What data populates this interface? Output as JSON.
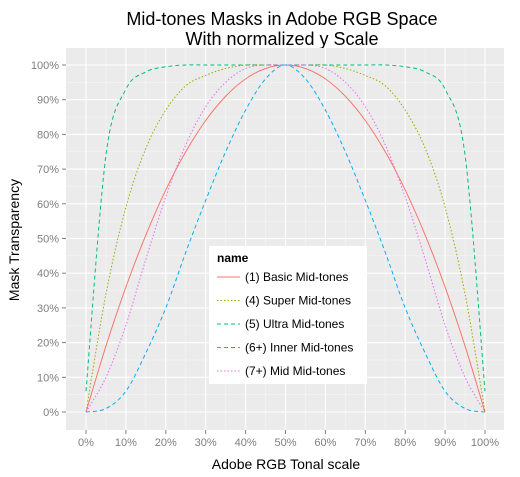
{
  "chart_data": {
    "type": "line",
    "title_line1": "Mid-tones Masks in Adobe RGB Space",
    "title_line2": "With normalized y Scale",
    "xlabel": "Adobe RGB Tonal scale",
    "ylabel": "Mask Transparency",
    "xlim": [
      0,
      1
    ],
    "ylim": [
      0,
      1
    ],
    "x_ticks": [
      "0%",
      "10%",
      "20%",
      "30%",
      "40%",
      "50%",
      "60%",
      "70%",
      "80%",
      "90%",
      "100%"
    ],
    "y_ticks": [
      "0%",
      "10%",
      "20%",
      "30%",
      "40%",
      "50%",
      "60%",
      "70%",
      "80%",
      "90%",
      "100%"
    ],
    "grid": true,
    "legend": {
      "title": "name",
      "placement": "inside-bottom-center"
    },
    "x": [
      0,
      0.05,
      0.1,
      0.15,
      0.2,
      0.25,
      0.3,
      0.35,
      0.4,
      0.45,
      0.5,
      0.55,
      0.6,
      0.65,
      0.7,
      0.75,
      0.8,
      0.85,
      0.9,
      0.95,
      1
    ],
    "series": [
      {
        "name": "(1) Basic Mid-tones",
        "color": "#F8766D",
        "dash": "solid",
        "values": [
          0.0,
          0.19,
          0.36,
          0.51,
          0.64,
          0.75,
          0.84,
          0.91,
          0.96,
          0.99,
          1.0,
          0.99,
          0.96,
          0.91,
          0.84,
          0.75,
          0.64,
          0.51,
          0.36,
          0.19,
          0.0
        ]
      },
      {
        "name": "(4) Super Mid-tones",
        "color": "#A3A500",
        "dash": "dotted",
        "values": [
          0.0,
          0.34,
          0.59,
          0.76,
          0.87,
          0.94,
          0.97,
          0.99,
          1.0,
          1.0,
          1.0,
          1.0,
          1.0,
          0.99,
          0.97,
          0.94,
          0.87,
          0.76,
          0.59,
          0.34,
          0.0
        ]
      },
      {
        "name": "(5) Ultra Mid-tones",
        "color": "#00BF7D",
        "dash": "dashed",
        "values": [
          0.06,
          0.74,
          0.93,
          0.98,
          0.995,
          1.0,
          1.0,
          1.0,
          1.0,
          1.0,
          1.0,
          1.0,
          1.0,
          1.0,
          1.0,
          1.0,
          0.995,
          0.98,
          0.93,
          0.74,
          0.06
        ]
      },
      {
        "name": "(6+) Inner Mid-tones",
        "color": "#00B0F6",
        "dash": "dashed",
        "values": [
          0.0,
          0.01,
          0.06,
          0.17,
          0.3,
          0.46,
          0.61,
          0.75,
          0.87,
          0.96,
          1.0,
          0.96,
          0.87,
          0.75,
          0.61,
          0.46,
          0.3,
          0.17,
          0.06,
          0.01,
          0.0
        ]
      },
      {
        "name": "(7+) Mid Mid-tones",
        "color": "#E76BF3",
        "dash": "dotted",
        "values": [
          0.0,
          0.1,
          0.25,
          0.44,
          0.62,
          0.77,
          0.88,
          0.95,
          0.99,
          1.0,
          1.0,
          1.0,
          0.99,
          0.95,
          0.88,
          0.77,
          0.62,
          0.44,
          0.25,
          0.1,
          0.0
        ]
      }
    ]
  }
}
